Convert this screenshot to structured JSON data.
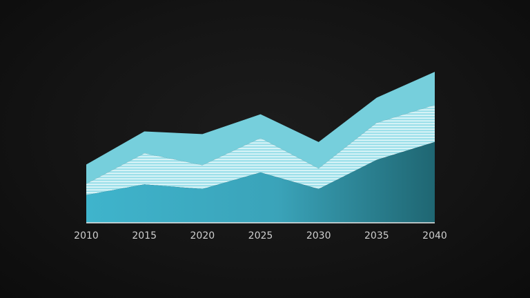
{
  "chart_data": {
    "type": "area",
    "stacked": true,
    "x": [
      "2010",
      "2015",
      "2020",
      "2025",
      "2030",
      "2035",
      "2040"
    ],
    "series": [
      {
        "values": [
          42,
          58,
          51,
          76,
          51,
          95,
          122
        ],
        "color": "#3fb4cc",
        "gradient_end": "#1f6672"
      },
      {
        "values": [
          17,
          47,
          36,
          52,
          31,
          56,
          56
        ],
        "color": "#9ee0ea",
        "pattern": "horizontal-stripes"
      },
      {
        "values": [
          29,
          33,
          47,
          36,
          40,
          38,
          50
        ],
        "color": "#76cfdc"
      }
    ],
    "ylim": [
      0,
      250
    ],
    "xlabel": "",
    "ylabel": "",
    "title": "",
    "grid": false,
    "legend": "none",
    "colors": {
      "background": "#141414",
      "axis": "#e8e8e8",
      "tick_text": "#cfcfcf"
    }
  }
}
